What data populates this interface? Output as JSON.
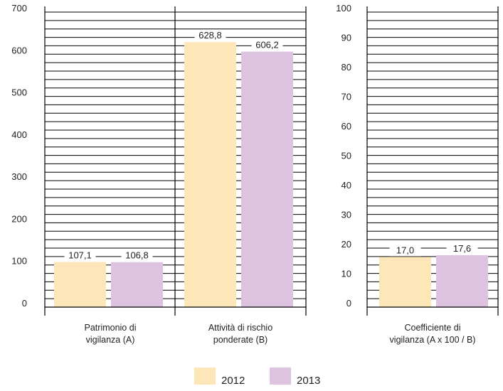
{
  "chart_data": [
    {
      "type": "bar",
      "ylim": [
        0,
        700
      ],
      "yticks": [
        0,
        100,
        200,
        300,
        400,
        500,
        600,
        700
      ],
      "grid": true,
      "categories": [
        "Patrimonio di vigilanza (A)",
        "Attività di rischio ponderate (B)"
      ],
      "category_lines": [
        [
          "Patrimonio di",
          "vigilanza (A)"
        ],
        [
          "Attività di rischio",
          "ponderate (B)"
        ]
      ],
      "series": [
        {
          "name": "2012",
          "color": "#fde6b8",
          "values": [
            107.1,
            628.8
          ],
          "labels": [
            "107,1",
            "628,8"
          ]
        },
        {
          "name": "2013",
          "color": "#ddc3df",
          "values": [
            106.8,
            606.2
          ],
          "labels": [
            "106,8",
            "606,2"
          ]
        }
      ]
    },
    {
      "type": "bar",
      "ylim": [
        0,
        100
      ],
      "yticks": [
        0,
        10,
        20,
        30,
        40,
        50,
        60,
        70,
        80,
        90,
        100
      ],
      "grid": true,
      "categories": [
        "Coefficiente di vigilanza (A x 100/B)"
      ],
      "category_lines": [
        [
          "Coefficiente di",
          "vigilanza (A x 100 / B)"
        ]
      ],
      "series": [
        {
          "name": "2012",
          "color": "#fde6b8",
          "values": [
            17.0
          ],
          "labels": [
            "17,0"
          ]
        },
        {
          "name": "2013",
          "color": "#ddc3df",
          "values": [
            17.6
          ],
          "labels": [
            "17,6"
          ]
        }
      ]
    }
  ],
  "legend": {
    "placement": "bottom-center",
    "items": [
      {
        "label": "2012",
        "color": "#fde6b8"
      },
      {
        "label": "2013",
        "color": "#ddc3df"
      }
    ]
  }
}
